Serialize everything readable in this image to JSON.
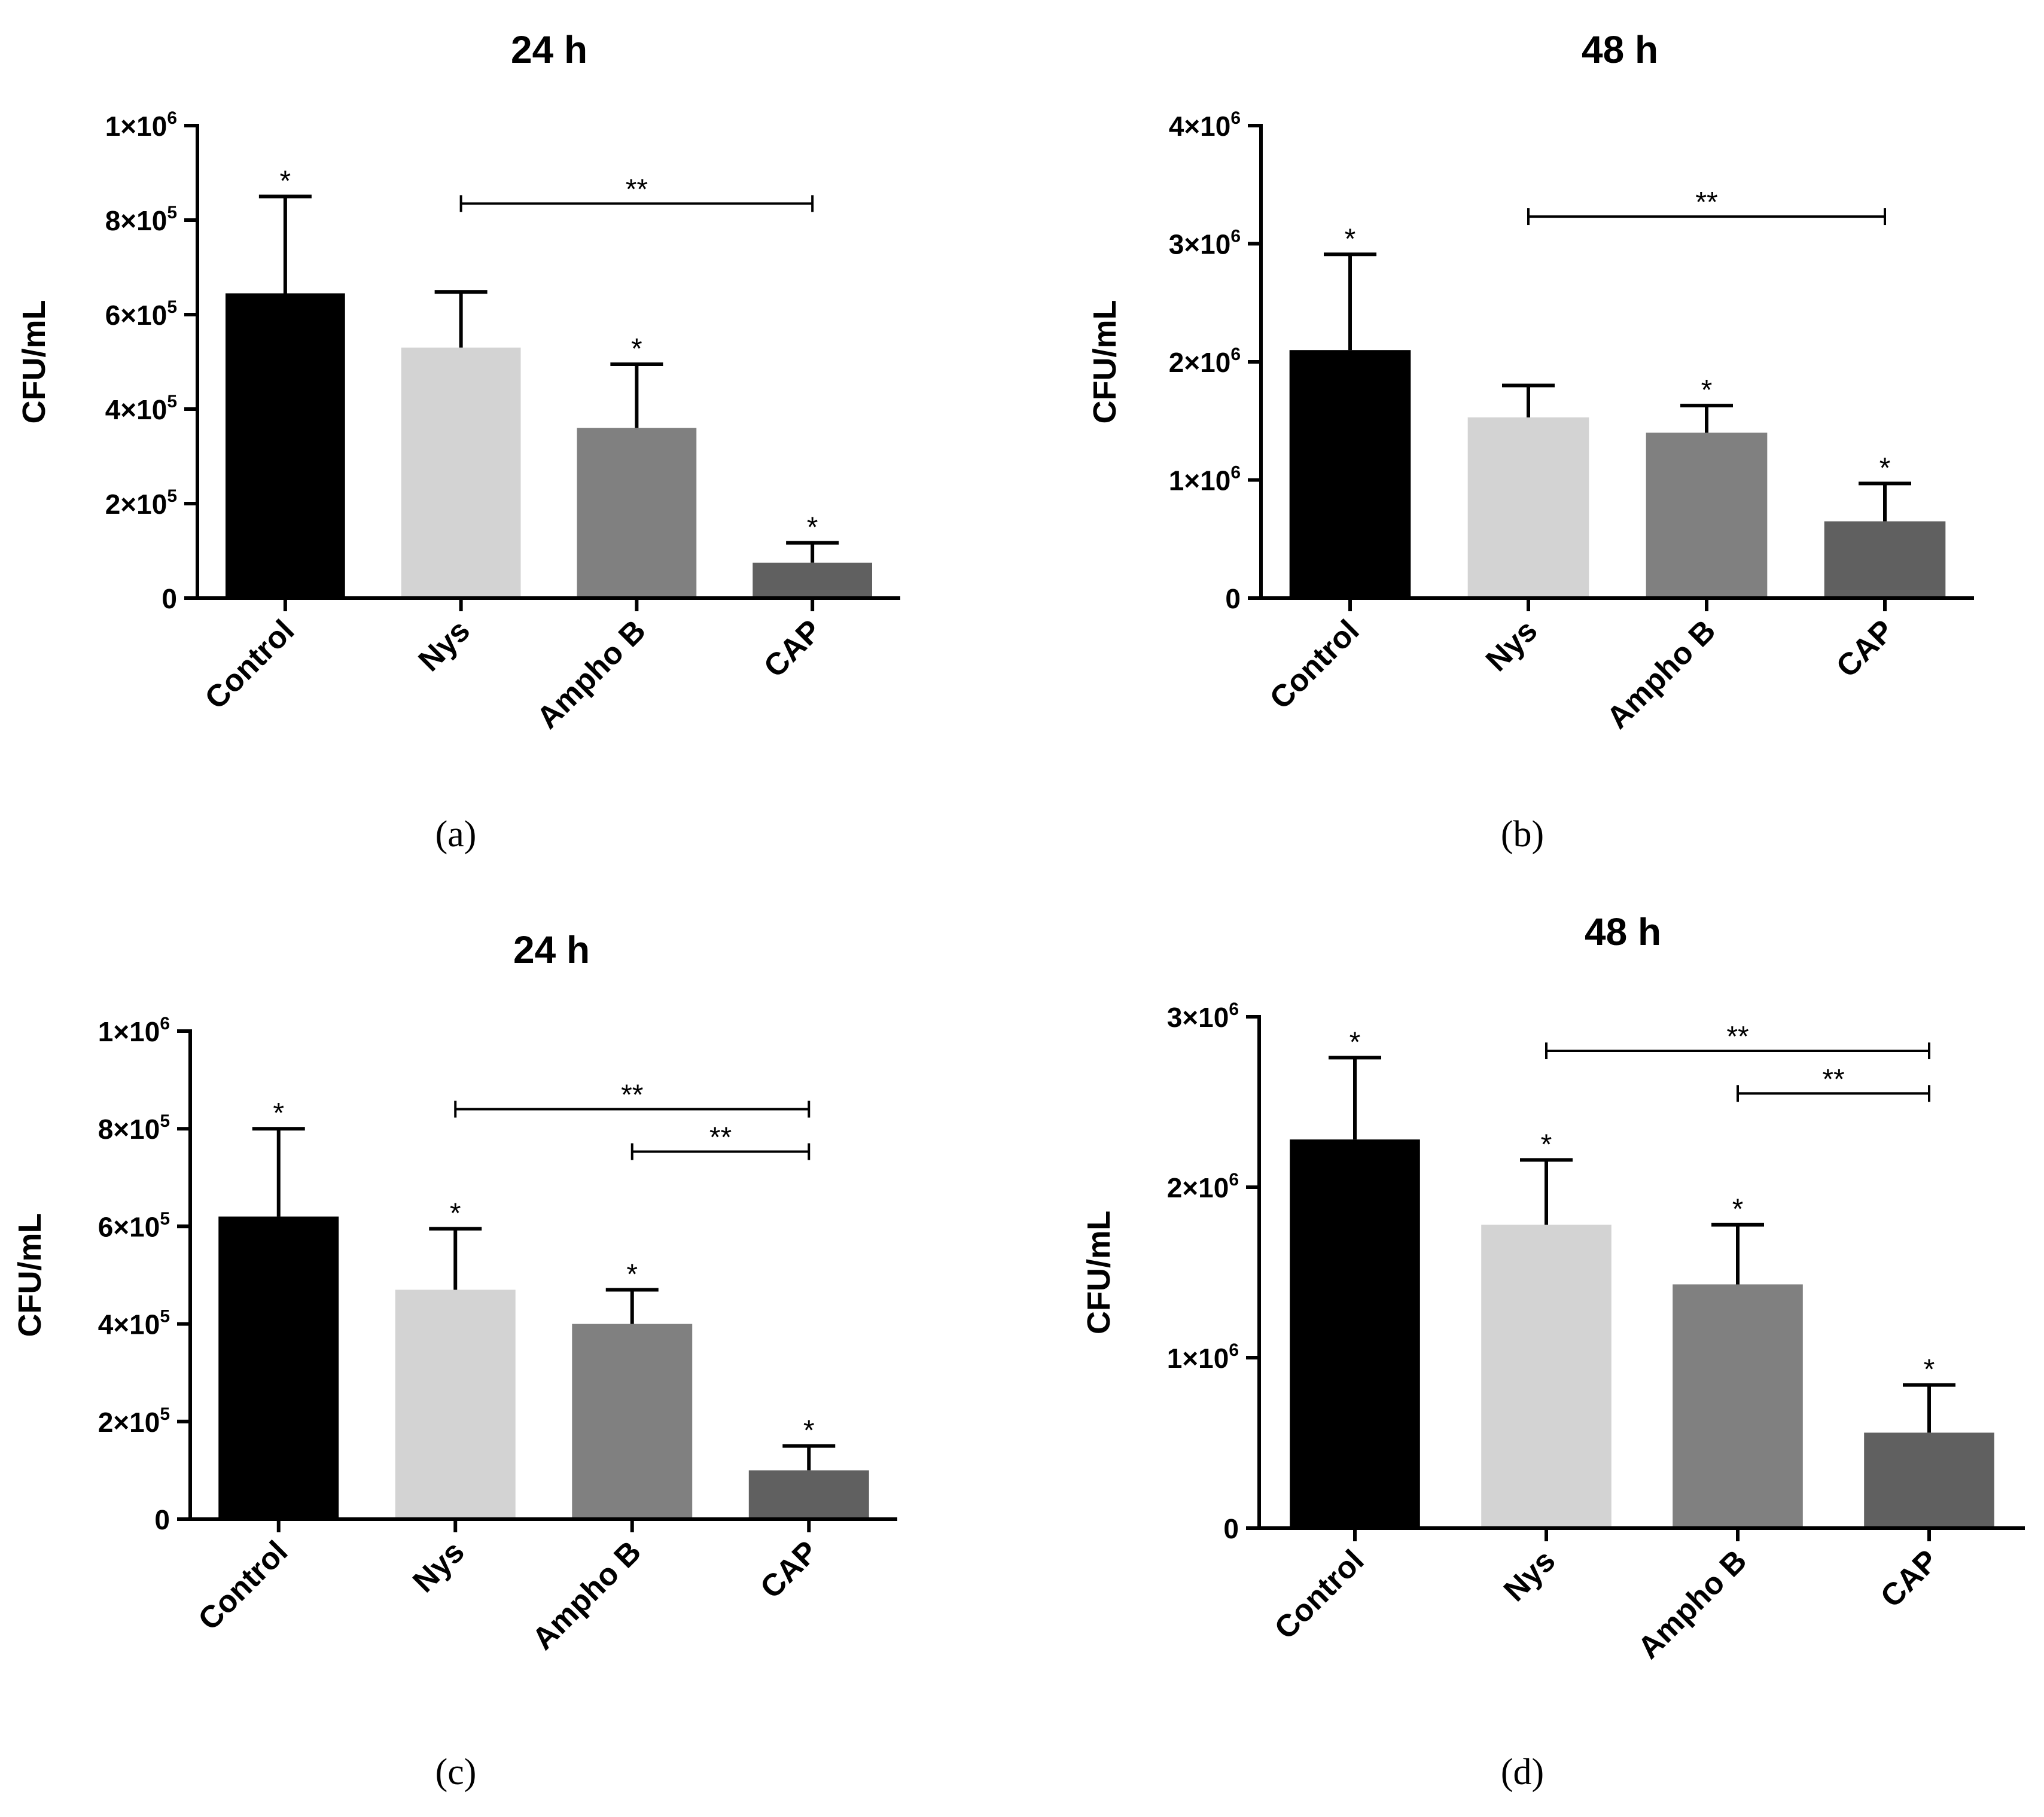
{
  "chart_data": [
    {
      "type": "bar",
      "panel_label": "(a)",
      "title": "24 h",
      "ylabel": "CFU/mL",
      "categories": [
        "Control",
        "Nys",
        "Ampho B",
        "CAP"
      ],
      "values": [
        645000,
        530000,
        360000,
        75000
      ],
      "errors": [
        205000,
        118000,
        135000,
        42000
      ],
      "ylim": [
        0,
        1000000
      ],
      "yticks": [
        {
          "value": 0,
          "base": "0",
          "exp": ""
        },
        {
          "value": 200000,
          "base": "2×10",
          "exp": "5"
        },
        {
          "value": 400000,
          "base": "4×10",
          "exp": "5"
        },
        {
          "value": 600000,
          "base": "6×10",
          "exp": "5"
        },
        {
          "value": 800000,
          "base": "8×10",
          "exp": "5"
        },
        {
          "value": 1000000,
          "base": "1×10",
          "exp": "6"
        }
      ],
      "bar_colors": [
        "#000000",
        "#d3d3d3",
        "#808080",
        "#606060"
      ],
      "annotations": [
        "*",
        "",
        "*",
        "*"
      ],
      "significance": [
        {
          "from": 1,
          "to": 3,
          "label": "**",
          "y": 835000
        }
      ]
    },
    {
      "type": "bar",
      "panel_label": "(b)",
      "title": "48 h",
      "ylabel": "CFU/mL",
      "categories": [
        "Control",
        "Nys",
        "Ampho B",
        "CAP"
      ],
      "values": [
        2100000,
        1530000,
        1400000,
        650000
      ],
      "errors": [
        810000,
        270000,
        230000,
        320000
      ],
      "ylim": [
        0,
        4000000
      ],
      "yticks": [
        {
          "value": 0,
          "base": "0",
          "exp": ""
        },
        {
          "value": 1000000,
          "base": "1×10",
          "exp": "6"
        },
        {
          "value": 2000000,
          "base": "2×10",
          "exp": "6"
        },
        {
          "value": 3000000,
          "base": "3×10",
          "exp": "6"
        },
        {
          "value": 4000000,
          "base": "4×10",
          "exp": "6"
        }
      ],
      "bar_colors": [
        "#000000",
        "#d3d3d3",
        "#808080",
        "#606060"
      ],
      "annotations": [
        "*",
        "",
        "*",
        "*"
      ],
      "significance": [
        {
          "from": 1,
          "to": 3,
          "label": "**",
          "y": 3230000
        }
      ]
    },
    {
      "type": "bar",
      "panel_label": "(c)",
      "title": "24 h",
      "ylabel": "CFU/mL",
      "categories": [
        "Control",
        "Nys",
        "Ampho B",
        "CAP"
      ],
      "values": [
        620000,
        470000,
        400000,
        100000
      ],
      "errors": [
        180000,
        125000,
        70000,
        50000
      ],
      "ylim": [
        0,
        1000000
      ],
      "yticks": [
        {
          "value": 0,
          "base": "0",
          "exp": ""
        },
        {
          "value": 200000,
          "base": "2×10",
          "exp": "5"
        },
        {
          "value": 400000,
          "base": "4×10",
          "exp": "5"
        },
        {
          "value": 600000,
          "base": "6×10",
          "exp": "5"
        },
        {
          "value": 800000,
          "base": "8×10",
          "exp": "5"
        },
        {
          "value": 1000000,
          "base": "1×10",
          "exp": "6"
        }
      ],
      "bar_colors": [
        "#000000",
        "#d3d3d3",
        "#808080",
        "#606060"
      ],
      "annotations": [
        "*",
        "*",
        "*",
        "*"
      ],
      "significance": [
        {
          "from": 1,
          "to": 3,
          "label": "**",
          "y": 840000
        },
        {
          "from": 2,
          "to": 3,
          "label": "**",
          "y": 753000
        }
      ]
    },
    {
      "type": "bar",
      "panel_label": "(d)",
      "title": "48 h",
      "ylabel": "CFU/mL",
      "categories": [
        "Control",
        "Nys",
        "Ampho B",
        "CAP"
      ],
      "values": [
        2280000,
        1780000,
        1430000,
        560000
      ],
      "errors": [
        480000,
        380000,
        350000,
        280000
      ],
      "ylim": [
        0,
        3000000
      ],
      "yticks": [
        {
          "value": 0,
          "base": "0",
          "exp": ""
        },
        {
          "value": 1000000,
          "base": "1×10",
          "exp": "6"
        },
        {
          "value": 2000000,
          "base": "2×10",
          "exp": "6"
        },
        {
          "value": 3000000,
          "base": "3×10",
          "exp": "6"
        }
      ],
      "bar_colors": [
        "#000000",
        "#d3d3d3",
        "#808080",
        "#606060"
      ],
      "annotations": [
        "*",
        "*",
        "*",
        "*"
      ],
      "significance": [
        {
          "from": 1,
          "to": 3,
          "label": "**",
          "y": 2800000
        },
        {
          "from": 2,
          "to": 3,
          "label": "**",
          "y": 2550000
        }
      ]
    }
  ]
}
